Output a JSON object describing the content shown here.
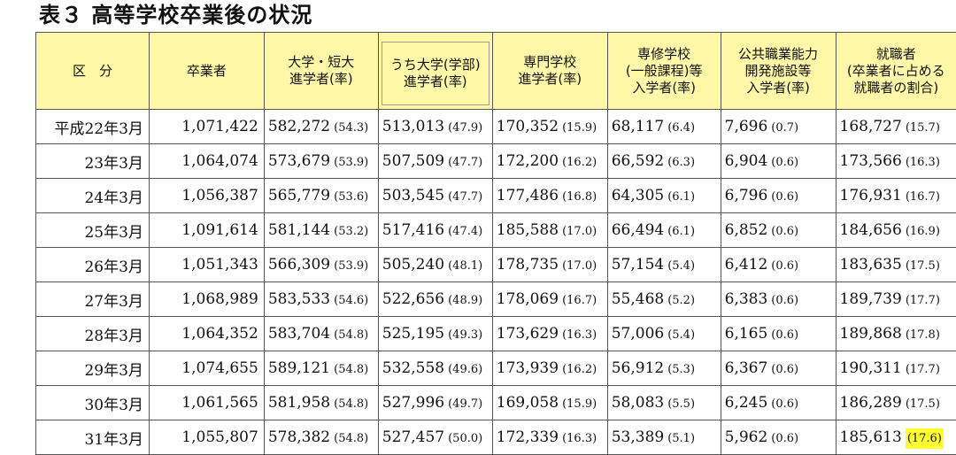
{
  "title": "表３ 高等学校卒業後の状況",
  "headers": [
    [
      "区　分"
    ],
    [
      "卒業者"
    ],
    [
      "大学・短大",
      "進学者(率)"
    ],
    [
      "うち大学(学部)",
      "進学者(率)"
    ],
    [
      "専門学校",
      "進学者(率)"
    ],
    [
      "専修学校",
      "(一般課程)等",
      "入学者(率)"
    ],
    [
      "公共職業能力",
      "開発施設等",
      "入学者(率)"
    ],
    [
      "就職者",
      "(卒業者に占める",
      "就職者の割合)"
    ]
  ],
  "rows": [
    {
      "label": "平成22年3月",
      "grad": "1,071,422",
      "c": [
        [
          "582,272",
          "(54.3)"
        ],
        [
          "513,013",
          "(47.9)"
        ],
        [
          "170,352",
          "(15.9)"
        ],
        [
          "68,117",
          "(6.4)"
        ],
        [
          "7,696",
          "(0.7)"
        ],
        [
          "168,727",
          "(15.7)"
        ]
      ]
    },
    {
      "label": "23年3月",
      "grad": "1,064,074",
      "c": [
        [
          "573,679",
          "(53.9)"
        ],
        [
          "507,509",
          "(47.7)"
        ],
        [
          "172,200",
          "(16.2)"
        ],
        [
          "66,592",
          "(6.3)"
        ],
        [
          "6,904",
          "(0.6)"
        ],
        [
          "173,566",
          "(16.3)"
        ]
      ]
    },
    {
      "label": "24年3月",
      "grad": "1,056,387",
      "c": [
        [
          "565,779",
          "(53.6)"
        ],
        [
          "503,545",
          "(47.7)"
        ],
        [
          "177,486",
          "(16.8)"
        ],
        [
          "64,305",
          "(6.1)"
        ],
        [
          "6,796",
          "(0.6)"
        ],
        [
          "176,931",
          "(16.7)"
        ]
      ]
    },
    {
      "label": "25年3月",
      "grad": "1,091,614",
      "c": [
        [
          "581,144",
          "(53.2)"
        ],
        [
          "517,416",
          "(47.4)"
        ],
        [
          "185,588",
          "(17.0)"
        ],
        [
          "66,494",
          "(6.1)"
        ],
        [
          "6,852",
          "(0.6)"
        ],
        [
          "184,656",
          "(16.9)"
        ]
      ]
    },
    {
      "label": "26年3月",
      "grad": "1,051,343",
      "c": [
        [
          "566,309",
          "(53.9)"
        ],
        [
          "505,240",
          "(48.1)"
        ],
        [
          "178,735",
          "(17.0)"
        ],
        [
          "57,154",
          "(5.4)"
        ],
        [
          "6,412",
          "(0.6)"
        ],
        [
          "183,635",
          "(17.5)"
        ]
      ]
    },
    {
      "label": "27年3月",
      "grad": "1,068,989",
      "c": [
        [
          "583,533",
          "(54.6)"
        ],
        [
          "522,656",
          "(48.9)"
        ],
        [
          "178,069",
          "(16.7)"
        ],
        [
          "55,468",
          "(5.2)"
        ],
        [
          "6,383",
          "(0.6)"
        ],
        [
          "189,739",
          "(17.7)"
        ]
      ]
    },
    {
      "label": "28年3月",
      "grad": "1,064,352",
      "c": [
        [
          "583,704",
          "(54.8)"
        ],
        [
          "525,195",
          "(49.3)"
        ],
        [
          "173,629",
          "(16.3)"
        ],
        [
          "57,006",
          "(5.4)"
        ],
        [
          "6,165",
          "(0.6)"
        ],
        [
          "189,868",
          "(17.8)"
        ]
      ]
    },
    {
      "label": "29年3月",
      "grad": "1,074,655",
      "c": [
        [
          "589,121",
          "(54.8)"
        ],
        [
          "532,558",
          "(49.6)"
        ],
        [
          "173,939",
          "(16.2)"
        ],
        [
          "56,912",
          "(5.3)"
        ],
        [
          "6,367",
          "(0.6)"
        ],
        [
          "190,311",
          "(17.7)"
        ]
      ]
    },
    {
      "label": "30年3月",
      "grad": "1,061,565",
      "c": [
        [
          "581,958",
          "(54.8)"
        ],
        [
          "527,996",
          "(49.7)"
        ],
        [
          "169,058",
          "(15.9)"
        ],
        [
          "58,083",
          "(5.5)"
        ],
        [
          "6,245",
          "(0.6)"
        ],
        [
          "186,289",
          "(17.5)"
        ]
      ]
    },
    {
      "label": "31年3月",
      "grad": "1,055,807",
      "c": [
        [
          "578,382",
          "(54.8)"
        ],
        [
          "527,457",
          "(50.0)"
        ],
        [
          "172,339",
          "(16.3)"
        ],
        [
          "53,389",
          "(5.1)"
        ],
        [
          "5,962",
          "(0.6)"
        ],
        [
          "185,613",
          "(17.6)"
        ]
      ]
    }
  ],
  "highlight": {
    "row": 9,
    "col": 5,
    "color": "#ffff2a"
  },
  "header_bg": "#fff8a6"
}
